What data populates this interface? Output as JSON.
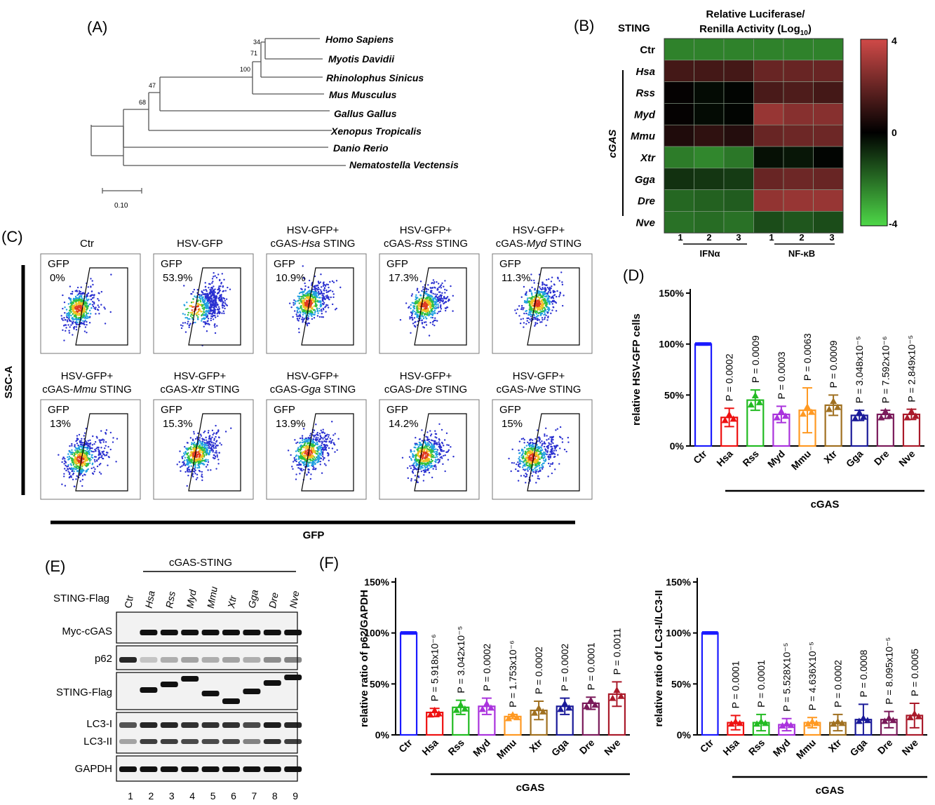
{
  "panels": {
    "A": "(A)",
    "B": "(B)",
    "C": "(C)",
    "D": "(D)",
    "E": "(E)",
    "F": "(F)"
  },
  "tree": {
    "species": [
      "Homo Sapiens",
      "Myotis Davidii",
      "Rhinolophus Sinicus",
      "Mus Musculus",
      "Gallus Gallus",
      "Xenopus Tropicalis",
      "Danio Rerio",
      "Nematostella Vectensis"
    ],
    "bootstrap": [
      "34",
      "71",
      "100",
      "47",
      "68"
    ],
    "scale_label": "0.10"
  },
  "heatmap": {
    "row_header": "STING",
    "title_line1": "Relative Luciferase/",
    "title_line2": "Renilla Activity (Log",
    "title_sub": "10",
    "title_close": ")",
    "rows": [
      "Ctr",
      "Hsa",
      "Rss",
      "Myd",
      "Mmu",
      "Xtr",
      "Gga",
      "Dre",
      "Nve"
    ],
    "group_label": "cGAS",
    "col_numbers": [
      "1",
      "2",
      "3",
      "1",
      "2",
      "3"
    ],
    "col_groups": [
      "IFNα",
      "NF-κB"
    ],
    "scale_ticks": [
      "4",
      "0",
      "-4"
    ],
    "colors": {
      "high": "#d04a48",
      "mid": "#000000",
      "low": "#4ed848"
    },
    "values": [
      [
        -2.4,
        -2.4,
        -2.4,
        -2.4,
        -2.4,
        -2.4
      ],
      [
        1.3,
        1.3,
        1.3,
        2.0,
        2.0,
        2.0
      ],
      [
        0.1,
        -0.2,
        -0.1,
        1.4,
        1.5,
        1.3
      ],
      [
        0.1,
        -0.2,
        -0.1,
        2.9,
        2.6,
        2.6
      ],
      [
        0.6,
        0.9,
        0.7,
        2.0,
        2.1,
        2.1
      ],
      [
        -2.3,
        -2.5,
        -2.2,
        -0.3,
        -0.4,
        -0.1
      ],
      [
        -0.9,
        -1.0,
        -1.1,
        2.0,
        2.1,
        2.0
      ],
      [
        -1.9,
        -1.8,
        -1.7,
        2.8,
        2.9,
        2.9
      ],
      [
        -2.1,
        -2.0,
        -2.1,
        -1.4,
        -1.6,
        -1.4
      ]
    ]
  },
  "flow": {
    "y_axis_label": "SSC-A",
    "x_axis_label": "GFP",
    "gate_label": "GFP",
    "plots": [
      {
        "title1": "Ctr",
        "title2": "",
        "title_italic": "",
        "title3": "",
        "percent": "0%"
      },
      {
        "title1": "HSV-GFP",
        "title2": "",
        "title_italic": "",
        "title3": "",
        "percent": "53.9%"
      },
      {
        "title1": "HSV-GFP+",
        "title2": "cGAS-",
        "title_italic": "Hsa",
        "title3": " STING",
        "percent": "10.9%"
      },
      {
        "title1": "HSV-GFP+",
        "title2": "cGAS-",
        "title_italic": "Rss",
        "title3": " STING",
        "percent": "17.3%"
      },
      {
        "title1": "HSV-GFP+",
        "title2": "cGAS-",
        "title_italic": "Myd",
        "title3": " STING",
        "percent": "11.3%"
      },
      {
        "title1": "HSV-GFP+",
        "title2": "cGAS-",
        "title_italic": "Mmu",
        "title3": " STING",
        "percent": "13%"
      },
      {
        "title1": "HSV-GFP+",
        "title2": "cGAS-",
        "title_italic": "Xtr",
        "title3": " STING",
        "percent": "15.3%"
      },
      {
        "title1": "HSV-GFP+",
        "title2": "cGAS-",
        "title_italic": "Gga",
        "title3": " STING",
        "percent": "13.9%"
      },
      {
        "title1": "HSV-GFP+",
        "title2": "cGAS-",
        "title_italic": "Dre",
        "title3": " STING",
        "percent": "14.2%"
      },
      {
        "title1": "HSV-GFP+",
        "title2": "cGAS-",
        "title_italic": "Nve",
        "title3": " STING",
        "percent": "15%"
      }
    ]
  },
  "chart_data": [
    {
      "type": "bar",
      "panel": "D",
      "ylabel": "relative HSV-GFP cells",
      "xlabel": "cGAS",
      "categories": [
        "Ctr",
        "Hsa",
        "Rss",
        "Myd",
        "Mmu",
        "Xtr",
        "Gga",
        "Dre",
        "Nve"
      ],
      "values": [
        100,
        28,
        45,
        31,
        35,
        40,
        30,
        31,
        31
      ],
      "errors": [
        1,
        9,
        10,
        8,
        22,
        10,
        5,
        4,
        5
      ],
      "pvalues": [
        "",
        "P = 0.0002",
        "P = 0.0009",
        "P = 0.0003",
        "P = 0.0063",
        "P = 0.0009",
        "P = 3.048x10⁻⁵",
        "P = 7.592x10⁻⁶",
        "P = 2.849x10⁻⁵"
      ],
      "yticks": [
        "0%",
        "50%",
        "100%",
        "150%"
      ],
      "ylim": [
        0,
        150
      ],
      "colors": [
        "#1a1aff",
        "#ee1111",
        "#22bb22",
        "#aa33dd",
        "#ff9922",
        "#a07020",
        "#1a1a99",
        "#7a1a5a",
        "#aa1a2a"
      ]
    },
    {
      "type": "bar",
      "panel": "F-left",
      "ylabel": "relative ratio of p62/GAPDH",
      "xlabel": "cGAS",
      "categories": [
        "Ctr",
        "Hsa",
        "Rss",
        "Myd",
        "Mmu",
        "Xtr",
        "Gga",
        "Dre",
        "Nve"
      ],
      "values": [
        100,
        22,
        27,
        28,
        18,
        24,
        28,
        31,
        40
      ],
      "errors": [
        1,
        4,
        7,
        8,
        2,
        9,
        8,
        6,
        12
      ],
      "pvalues": [
        "",
        "P = 5.918x10⁻⁶",
        "P = 3.042x10⁻⁵",
        "P = 0.0002",
        "P = 1.753x10⁻⁶",
        "P = 0.0002",
        "P = 0.0002",
        "P = 0.0001",
        "P = 0.0011"
      ],
      "yticks": [
        "0%",
        "50%",
        "100%",
        "150%"
      ],
      "ylim": [
        0,
        150
      ],
      "colors": [
        "#1a1aff",
        "#ee1111",
        "#22bb22",
        "#aa33dd",
        "#ff9922",
        "#a07020",
        "#1a1a99",
        "#7a1a5a",
        "#aa1a2a"
      ]
    },
    {
      "type": "bar",
      "panel": "F-right",
      "ylabel": "relative ratio of LC3-I/LC3-II",
      "xlabel": "cGAS",
      "categories": [
        "Ctr",
        "Hsa",
        "Rss",
        "Myd",
        "Mmu",
        "Xtr",
        "Gga",
        "Dre",
        "Nve"
      ],
      "values": [
        100,
        12,
        12,
        10,
        12,
        12,
        15,
        15,
        19
      ],
      "errors": [
        1,
        7,
        8,
        6,
        5,
        8,
        15,
        8,
        12
      ],
      "pvalues": [
        "",
        "P = 0.0001",
        "P = 0.0001",
        "P = 5.528X10⁻⁵",
        "P = 4.636X10⁻⁵",
        "P = 0.0002",
        "P = 0.0008",
        "P = 8.095x10⁻⁵",
        "P = 0.0005"
      ],
      "yticks": [
        "0%",
        "50%",
        "100%",
        "150%"
      ],
      "ylim": [
        0,
        150
      ],
      "colors": [
        "#1a1aff",
        "#ee1111",
        "#22bb22",
        "#aa33dd",
        "#ff9922",
        "#a07020",
        "#1a1a99",
        "#7a1a5a",
        "#aa1a2a"
      ]
    }
  ],
  "blot": {
    "header": "cGAS-STING",
    "row_label_sting": "STING-Flag",
    "lanes": [
      "Ctr",
      "Hsa",
      "Rss",
      "Myd",
      "Mmu",
      "Xtr",
      "Gga",
      "Dre",
      "Nve"
    ],
    "lane_numbers": [
      "1",
      "2",
      "3",
      "4",
      "5",
      "6",
      "7",
      "8",
      "9"
    ],
    "bands": [
      "Myc-cGAS",
      "p62",
      "STING-Flag",
      "LC3-I",
      "LC3-II",
      "GAPDH"
    ]
  }
}
